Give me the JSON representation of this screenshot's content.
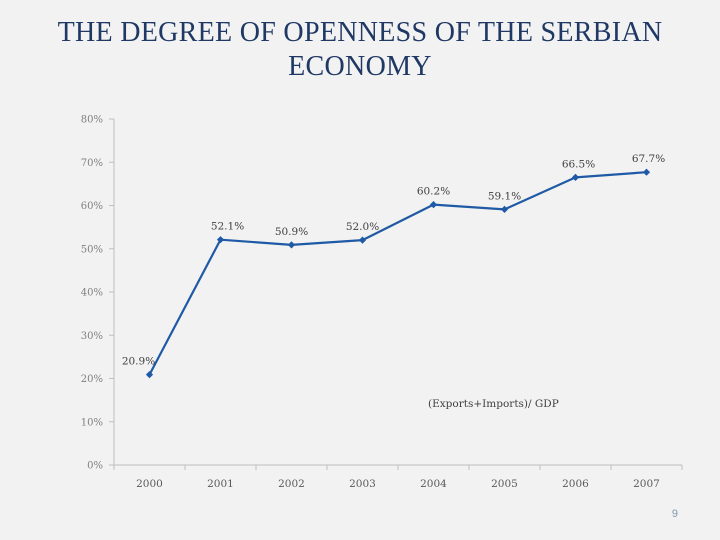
{
  "slide": {
    "title": "THE DEGREE OF OPENNESS OF THE SERBIAN ECONOMY",
    "page_number": "9"
  },
  "chart_data": {
    "type": "line",
    "title": "",
    "xlabel": "",
    "ylabel": "",
    "categories": [
      "2000",
      "2001",
      "2002",
      "2003",
      "2004",
      "2005",
      "2006",
      "2007"
    ],
    "series": [
      {
        "name": "(Exports+Imports)/ GDP",
        "values": [
          20.9,
          52.1,
          50.9,
          52.0,
          60.2,
          59.1,
          66.5,
          67.7
        ],
        "labels": [
          "20.9%",
          "52.1%",
          "50.9%",
          "52.0%",
          "60.2%",
          "59.1%",
          "66.5%",
          "67.7%"
        ],
        "color": "#1f5aa6"
      }
    ],
    "ylim": [
      0,
      80
    ],
    "yticks": [
      0,
      10,
      20,
      30,
      40,
      50,
      60,
      70,
      80
    ],
    "ytick_labels": [
      "0%",
      "10%",
      "20%",
      "30%",
      "40%",
      "50%",
      "60%",
      "70%",
      "80%"
    ],
    "annotation": "(Exports+Imports)/ GDP",
    "grid": false
  }
}
